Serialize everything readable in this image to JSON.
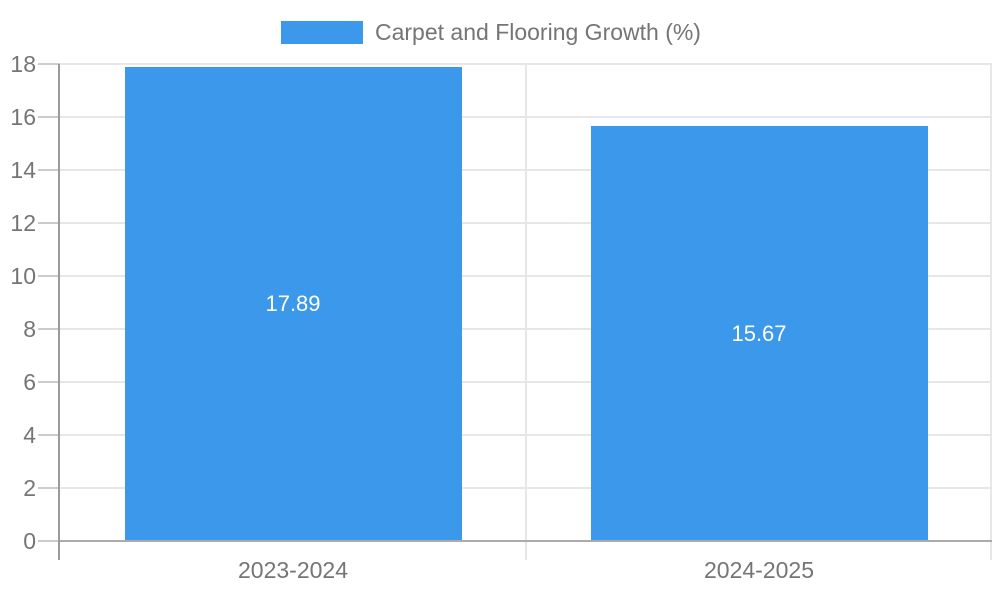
{
  "chart_data": {
    "type": "bar",
    "title": "",
    "xlabel": "",
    "ylabel": "",
    "categories": [
      "2023-2024",
      "2024-2025"
    ],
    "series": [
      {
        "name": "Carpet and Flooring Growth (%)",
        "values": [
          17.89,
          15.67
        ]
      }
    ],
    "value_labels": [
      "17.89",
      "15.67"
    ],
    "ylim": [
      0,
      18
    ],
    "yticks": [
      0,
      2,
      4,
      6,
      8,
      10,
      12,
      14,
      16,
      18
    ],
    "grid": true,
    "legend_position": "top-center",
    "colors": {
      "bar": "#3B98EB",
      "axis_text": "#757575",
      "gridline": "#e7e7e7",
      "tick": "#cccccc",
      "axis_line": "#9a9a9a",
      "baseline": "#ababab",
      "value_label": "#ffffff",
      "background": "#ffffff"
    }
  }
}
